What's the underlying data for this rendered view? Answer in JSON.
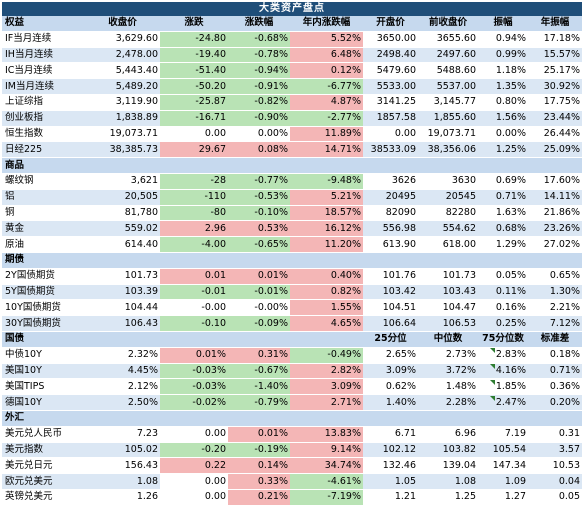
{
  "title": "大类资产盘点",
  "header": [
    "权益",
    "收盘价",
    "涨跌",
    "涨跌幅",
    "年内涨跌幅",
    "开盘价",
    "前收盘价",
    "振幅",
    "年振幅"
  ],
  "equity": [
    [
      "IF当月连续",
      "3,629.60",
      "-24.80",
      "-0.68%",
      "5.52%",
      "3650.00",
      "3655.60",
      "0.94%",
      "17.18%"
    ],
    [
      "IH当月连续",
      "2,478.00",
      "-19.40",
      "-0.78%",
      "6.48%",
      "2498.40",
      "2497.60",
      "0.99%",
      "15.57%"
    ],
    [
      "IC当月连续",
      "5,443.40",
      "-51.40",
      "-0.94%",
      "0.12%",
      "5479.60",
      "5488.60",
      "1.18%",
      "25.17%"
    ],
    [
      "IM当月连续",
      "5,489.20",
      "-50.20",
      "-0.91%",
      "-6.77%",
      "5533.00",
      "5537.00",
      "1.35%",
      "30.92%"
    ],
    [
      "上证综指",
      "3,119.90",
      "-25.87",
      "-0.82%",
      "4.87%",
      "3141.25",
      "3,145.77",
      "0.80%",
      "17.75%"
    ],
    [
      "创业板指",
      "1,838.89",
      "-16.71",
      "-0.90%",
      "-2.77%",
      "1857.58",
      "1,855.60",
      "1.56%",
      "23.44%"
    ],
    [
      "恒生指数",
      "19,073.71",
      "0.00",
      "0.00%",
      "11.89%",
      "0.00",
      "19,073.71",
      "0.00%",
      "26.44%"
    ],
    [
      "日经225",
      "38,385.73",
      "29.67",
      "0.08%",
      "14.71%",
      "38533.09",
      "38,356.06",
      "1.25%",
      "25.09%"
    ]
  ],
  "commodity_label": "商品",
  "commodity": [
    [
      "螺纹钢",
      "3,621",
      "-28",
      "-0.77%",
      "-9.48%",
      "3626",
      "3630",
      "0.69%",
      "17.60%"
    ],
    [
      "铝",
      "20,505",
      "-110",
      "-0.53%",
      "5.21%",
      "20495",
      "20545",
      "0.71%",
      "14.11%"
    ],
    [
      "铜",
      "81,780",
      "-80",
      "-0.10%",
      "18.57%",
      "82090",
      "82280",
      "1.63%",
      "21.86%"
    ],
    [
      "黄金",
      "559.02",
      "2.96",
      "0.53%",
      "16.12%",
      "556.98",
      "554.62",
      "0.68%",
      "23.26%"
    ],
    [
      "原油",
      "614.40",
      "-4.00",
      "-0.65%",
      "11.20%",
      "613.90",
      "618.00",
      "1.29%",
      "27.02%"
    ]
  ],
  "futures_label": "期债",
  "futures": [
    [
      "2Y国债期货",
      "101.73",
      "0.01",
      "0.01%",
      "0.40%",
      "101.76",
      "101.73",
      "0.05%",
      "0.65%"
    ],
    [
      "5Y国债期货",
      "103.39",
      "-0.01",
      "-0.01%",
      "0.82%",
      "103.42",
      "103.43",
      "0.11%",
      "1.30%"
    ],
    [
      "10Y国债期货",
      "104.44",
      "-0.00",
      "-0.00%",
      "1.55%",
      "104.51",
      "104.47",
      "0.16%",
      "2.21%"
    ],
    [
      "30Y国债期货",
      "106.43",
      "-0.10",
      "-0.09%",
      "4.65%",
      "106.64",
      "106.53",
      "0.25%",
      "7.12%"
    ]
  ],
  "bond_header": [
    "国债",
    "",
    "",
    "",
    "",
    "25分位",
    "中位数",
    "75分位数",
    "标准差"
  ],
  "bonds": [
    [
      "中债10Y",
      "2.32%",
      "0.01%",
      "0.31%",
      "-0.49%",
      "2.65%",
      "2.73%",
      "2.83%",
      "0.18%"
    ],
    [
      "美国10Y",
      "4.45%",
      "-0.03%",
      "-0.67%",
      "2.82%",
      "3.09%",
      "3.72%",
      "4.16%",
      "0.71%"
    ],
    [
      "美国TIPS",
      "2.12%",
      "-0.03%",
      "-1.40%",
      "3.09%",
      "0.62%",
      "1.48%",
      "1.85%",
      "0.36%"
    ],
    [
      "德国10Y",
      "2.50%",
      "-0.02%",
      "-0.79%",
      "2.71%",
      "1.40%",
      "2.28%",
      "2.47%",
      "0.20%"
    ]
  ],
  "fx_label": "外汇",
  "fx": [
    [
      "美元兑人民币",
      "7.23",
      "0.00",
      "0.01%",
      "13.83%",
      "6.71",
      "6.96",
      "7.19",
      "0.31"
    ],
    [
      "美元指数",
      "105.02",
      "-0.20",
      "-0.19%",
      "9.14%",
      "102.12",
      "103.82",
      "105.54",
      "3.57"
    ],
    [
      "美元兑日元",
      "156.43",
      "0.22",
      "0.14%",
      "34.74%",
      "132.46",
      "139.04",
      "147.34",
      "10.53"
    ],
    [
      "欧元兑美元",
      "1.08",
      "0.00",
      "0.33%",
      "-4.61%",
      "1.05",
      "1.08",
      "1.09",
      "0.04"
    ],
    [
      "英镑兑美元",
      "1.26",
      "0.00",
      "0.21%",
      "-7.19%",
      "1.21",
      "1.25",
      "1.27",
      "0.05"
    ]
  ]
}
